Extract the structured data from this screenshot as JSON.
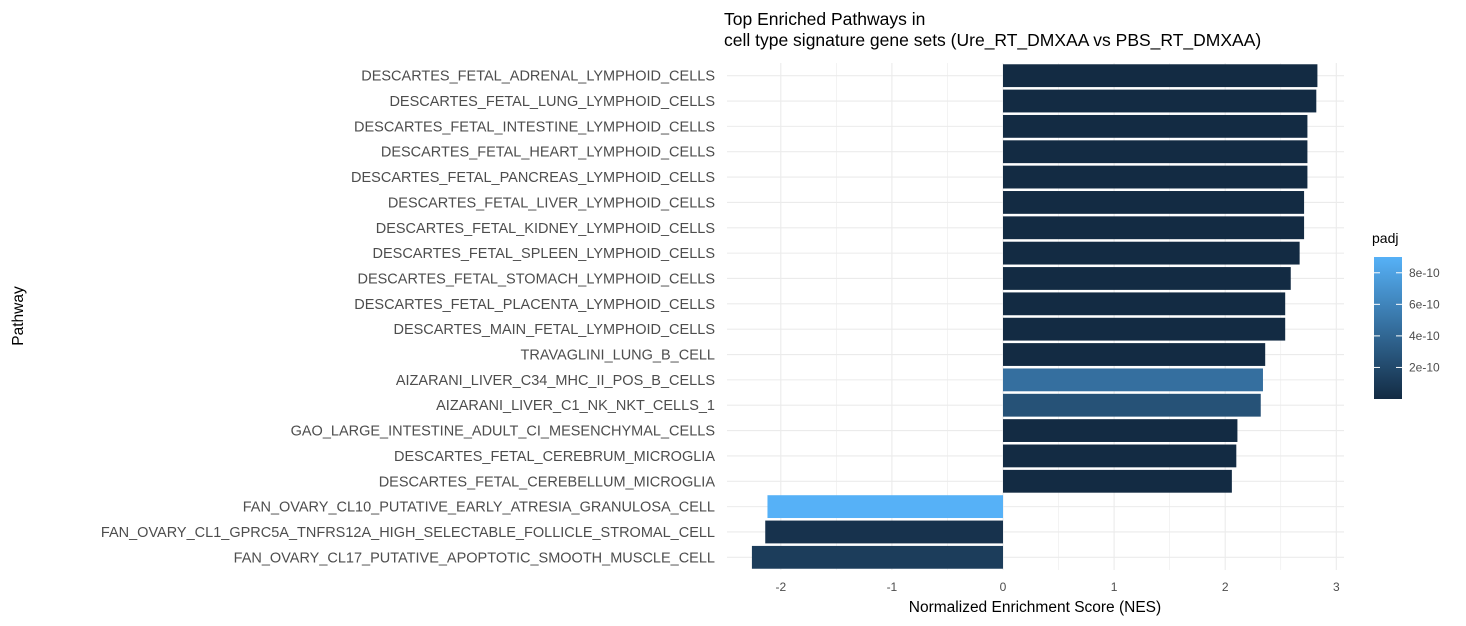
{
  "chart_data": {
    "type": "bar",
    "orientation": "horizontal",
    "title": "Top Enriched Pathways in\ncell type signature gene sets (Ure_RT_DMXAA vs PBS_RT_DMXAA)",
    "xlabel": "Normalized Enrichment Score (NES)",
    "ylabel": "Pathway",
    "xlim": [
      -2.28,
      3.05
    ],
    "xticks": [
      -2,
      -1,
      0,
      1,
      2,
      3
    ],
    "grid": true,
    "legend": {
      "title": "padj",
      "position": "right",
      "type": "colorbar",
      "low_color": "#132b43",
      "high_color": "#56b1f7",
      "range": [
        0,
        9e-10
      ],
      "ticks": [
        {
          "value": 2e-10,
          "label": "2e-10"
        },
        {
          "value": 4e-10,
          "label": "4e-10"
        },
        {
          "value": 6e-10,
          "label": "6e-10"
        },
        {
          "value": 8e-10,
          "label": "8e-10"
        }
      ]
    },
    "categories": [
      "DESCARTES_FETAL_ADRENAL_LYMPHOID_CELLS",
      "DESCARTES_FETAL_LUNG_LYMPHOID_CELLS",
      "DESCARTES_FETAL_INTESTINE_LYMPHOID_CELLS",
      "DESCARTES_FETAL_HEART_LYMPHOID_CELLS",
      "DESCARTES_FETAL_PANCREAS_LYMPHOID_CELLS",
      "DESCARTES_FETAL_LIVER_LYMPHOID_CELLS",
      "DESCARTES_FETAL_KIDNEY_LYMPHOID_CELLS",
      "DESCARTES_FETAL_SPLEEN_LYMPHOID_CELLS",
      "DESCARTES_FETAL_STOMACH_LYMPHOID_CELLS",
      "DESCARTES_FETAL_PLACENTA_LYMPHOID_CELLS",
      "DESCARTES_MAIN_FETAL_LYMPHOID_CELLS",
      "TRAVAGLINI_LUNG_B_CELL",
      "AIZARANI_LIVER_C34_MHC_II_POS_B_CELLS",
      "AIZARANI_LIVER_C1_NK_NKT_CELLS_1",
      "GAO_LARGE_INTESTINE_ADULT_CI_MESENCHYMAL_CELLS",
      "DESCARTES_FETAL_CEREBRUM_MICROGLIA",
      "DESCARTES_FETAL_CEREBELLUM_MICROGLIA",
      "FAN_OVARY_CL10_PUTATIVE_EARLY_ATRESIA_GRANULOSA_CELL",
      "FAN_OVARY_CL1_GPRC5A_TNFRS12A_HIGH_SELECTABLE_FOLLICLE_STROMAL_CELL",
      "FAN_OVARY_CL17_PUTATIVE_APOPTOTIC_SMOOTH_MUSCLE_CELL"
    ],
    "values": [
      2.83,
      2.82,
      2.74,
      2.74,
      2.74,
      2.71,
      2.71,
      2.67,
      2.59,
      2.54,
      2.54,
      2.36,
      2.34,
      2.32,
      2.11,
      2.1,
      2.06,
      -2.12,
      -2.14,
      -2.26
    ],
    "padj": [
      1e-12,
      1e-12,
      1e-12,
      1e-12,
      1e-12,
      1e-12,
      1e-12,
      1e-12,
      1e-12,
      1e-12,
      1e-12,
      1e-12,
      4.6e-10,
      2.6e-10,
      1e-12,
      1e-12,
      1e-12,
      9e-10,
      5e-11,
      1.2e-10
    ]
  }
}
